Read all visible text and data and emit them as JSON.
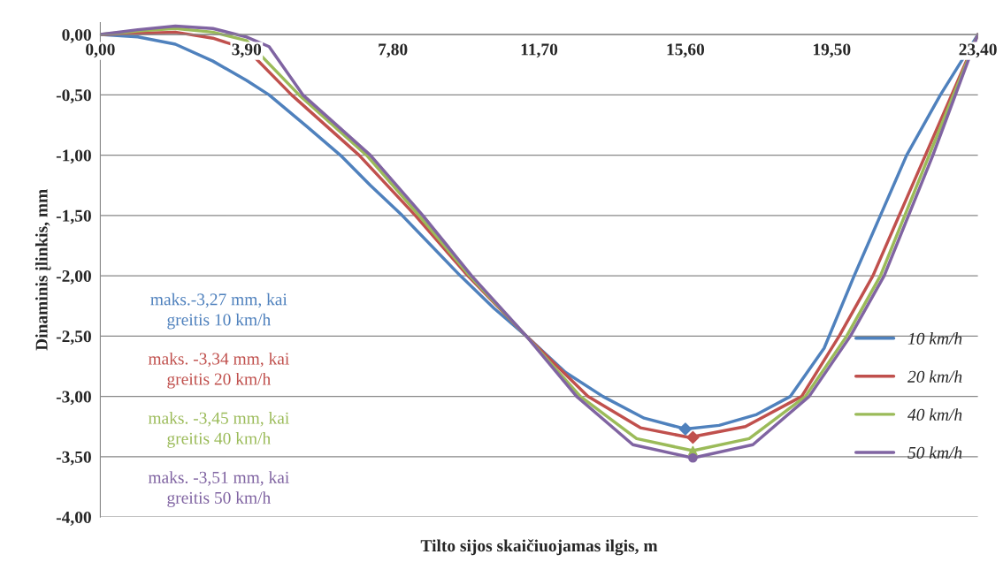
{
  "chart_data": {
    "type": "line",
    "xlabel": "Tilto sijos skaičiuojamas ilgis, m",
    "ylabel": "Dinaminis įlinkis, mm",
    "xlim": [
      0,
      23.4
    ],
    "ylim": [
      -4,
      0.1
    ],
    "xticks": [
      {
        "value": 0,
        "label": "0,00"
      },
      {
        "value": 3.9,
        "label": "3,90"
      },
      {
        "value": 7.8,
        "label": "7,80"
      },
      {
        "value": 11.7,
        "label": "11,70"
      },
      {
        "value": 15.6,
        "label": "15,60"
      },
      {
        "value": 19.5,
        "label": "19,50"
      },
      {
        "value": 23.4,
        "label": "23,40"
      }
    ],
    "yticks": [
      {
        "value": 0,
        "label": "0,00"
      },
      {
        "value": -0.5,
        "label": "-0,50"
      },
      {
        "value": -1,
        "label": "-1,00"
      },
      {
        "value": -1.5,
        "label": "-1,50"
      },
      {
        "value": -2,
        "label": "-2,00"
      },
      {
        "value": -2.5,
        "label": "-2,50"
      },
      {
        "value": -3,
        "label": "-3,00"
      },
      {
        "value": -3.5,
        "label": "-3,50"
      },
      {
        "value": -4,
        "label": "-4,00"
      }
    ],
    "grid": "y",
    "legend": "bottom right",
    "marker": "none",
    "series": [
      {
        "name": "10 km/h",
        "color": "#4f81bd",
        "x": [
          0,
          1,
          2,
          3,
          3.9,
          4.5,
          5.5,
          6.4,
          7.2,
          8.05,
          9.6,
          10.5,
          11.36,
          12.4,
          13.4,
          14.5,
          15.6,
          16.5,
          17.5,
          18.4,
          19.3,
          20.1,
          20.8,
          21.5,
          22.4,
          23.4
        ],
        "values": [
          0,
          -0.02,
          -0.08,
          -0.22,
          -0.38,
          -0.5,
          -0.76,
          -1.0,
          -1.25,
          -1.5,
          -2.0,
          -2.27,
          -2.5,
          -2.8,
          -3.0,
          -3.18,
          -3.27,
          -3.24,
          -3.15,
          -3.0,
          -2.6,
          -2.0,
          -1.5,
          -1.0,
          -0.5,
          0
        ]
      },
      {
        "name": "20 km/h",
        "color": "#c0504d",
        "x": [
          0,
          1,
          2,
          3,
          3.9,
          5.1,
          6.9,
          8.4,
          9.8,
          11.36,
          13.0,
          14.4,
          15.7,
          17.2,
          18.7,
          19.7,
          20.6,
          22.0,
          22.7,
          23.4
        ],
        "values": [
          0,
          0.01,
          0.02,
          -0.03,
          -0.12,
          -0.5,
          -1.0,
          -1.5,
          -2.0,
          -2.5,
          -3.0,
          -3.26,
          -3.34,
          -3.25,
          -3.0,
          -2.5,
          -2.0,
          -1.0,
          -0.5,
          0
        ]
      },
      {
        "name": "40 km/h",
        "color": "#9bbb59",
        "x": [
          0,
          1,
          2,
          3,
          3.9,
          5.3,
          7.1,
          8.5,
          9.85,
          11.36,
          12.8,
          14.3,
          15.8,
          17.3,
          18.8,
          19.9,
          20.8,
          22.1,
          22.75,
          23.4
        ],
        "values": [
          0,
          0.03,
          0.05,
          0.02,
          -0.05,
          -0.5,
          -1.0,
          -1.5,
          -2.0,
          -2.5,
          -3.0,
          -3.35,
          -3.45,
          -3.35,
          -3.0,
          -2.5,
          -2.0,
          -1.0,
          -0.5,
          0
        ]
      },
      {
        "name": "50 km/h",
        "color": "#8064a2",
        "x": [
          0,
          1,
          2,
          3,
          3.9,
          4.5,
          5.4,
          7.2,
          8.6,
          9.9,
          11.36,
          12.7,
          14.2,
          15.8,
          17.4,
          18.9,
          20.0,
          20.9,
          22.2,
          22.8,
          23.4
        ],
        "values": [
          0,
          0.04,
          0.07,
          0.05,
          -0.02,
          -0.1,
          -0.5,
          -1.0,
          -1.5,
          -2.0,
          -2.5,
          -3.0,
          -3.4,
          -3.51,
          -3.4,
          -3.0,
          -2.5,
          -2.0,
          -1.0,
          -0.5,
          0
        ]
      },
      {
        "type": "scatter",
        "marker": "diamond",
        "color": "#4f81bd",
        "x": [
          15.6
        ],
        "values": [
          -3.27
        ]
      },
      {
        "type": "scatter",
        "marker": "diamond",
        "color": "#c0504d",
        "x": [
          15.8
        ],
        "values": [
          -3.34
        ]
      },
      {
        "type": "scatter",
        "marker": "triangle",
        "color": "#9bbb59",
        "x": [
          15.8
        ],
        "values": [
          -3.45
        ]
      },
      {
        "type": "scatter",
        "marker": "circle",
        "color": "#8064a2",
        "x": [
          15.8
        ],
        "values": [
          -3.51
        ]
      }
    ],
    "annotations": [
      "maks.-3,27 mm, kai\ngreitis 10 km/h",
      "maks. -3,34 mm, kai\ngreitis 20 km/h",
      "maks. -3,45 mm, kai\ngreitis 40 km/h",
      "maks. -3,51 mm, kai\ngreitis 50 km/h"
    ]
  }
}
